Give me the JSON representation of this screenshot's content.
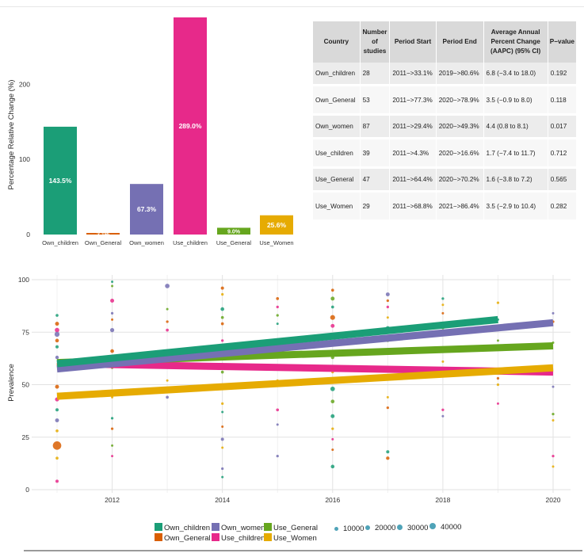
{
  "colors": {
    "Own_children": "#1b9e77",
    "Own_General": "#d95f02",
    "Own_women": "#7570b3",
    "Use_children": "#e7298a",
    "Use_General": "#66a61e",
    "Use_Women": "#e6ab02",
    "size_dot": "#4fa3b8"
  },
  "chart_data": [
    {
      "type": "bar",
      "ylabel": "Percentage Relative Change (%)",
      "categories": [
        "Own_children",
        "Own_General",
        "Own_women",
        "Use_children",
        "Use_General",
        "Use_Women"
      ],
      "values": [
        143.5,
        2.1,
        67.3,
        289.0,
        9.0,
        25.6
      ],
      "data_labels": [
        "143.5%",
        "2.1%",
        "67.3%",
        "289.0%",
        "9.0%",
        "25.6%"
      ],
      "yticks": [
        0,
        100,
        200
      ],
      "ylim": [
        0,
        290
      ],
      "grid": false
    },
    {
      "type": "scatter",
      "xlabel": "",
      "ylabel": "Prevalence",
      "xticks": [
        2012,
        2014,
        2016,
        2018,
        2020
      ],
      "yticks": [
        0,
        25,
        50,
        75,
        100
      ],
      "xlim": [
        2011,
        2020
      ],
      "ylim": [
        0,
        100
      ],
      "grid": true,
      "trend_lines": [
        {
          "series": "Use_children",
          "x": [
            2011,
            2020
          ],
          "y": [
            60.0,
            56.0
          ]
        },
        {
          "series": "Use_Women",
          "x": [
            2011,
            2020
          ],
          "y": [
            44.5,
            58.0
          ]
        },
        {
          "series": "Use_General",
          "x": [
            2011,
            2020
          ],
          "y": [
            60.5,
            68.5
          ]
        },
        {
          "series": "Own_General",
          "x": [
            2011,
            2014
          ],
          "y": [
            58.5,
            66.5
          ]
        },
        {
          "series": "Own_women",
          "x": [
            2011,
            2020
          ],
          "y": [
            57.5,
            79.5
          ]
        },
        {
          "series": "Own_children",
          "x": [
            2011,
            2019
          ],
          "y": [
            60.0,
            81.0
          ]
        }
      ],
      "points": [
        {
          "x": 2011,
          "y": 83,
          "s": "Own_children",
          "n": 5000
        },
        {
          "x": 2011,
          "y": 79,
          "s": "Own_General",
          "n": 9000
        },
        {
          "x": 2011,
          "y": 76,
          "s": "Use_children",
          "n": 12000
        },
        {
          "x": 2011,
          "y": 74,
          "s": "Own_women",
          "n": 15000
        },
        {
          "x": 2011,
          "y": 71,
          "s": "Own_General",
          "n": 8000
        },
        {
          "x": 2011,
          "y": 68,
          "s": "Own_children",
          "n": 6000
        },
        {
          "x": 2011,
          "y": 63,
          "s": "Own_women",
          "n": 7000
        },
        {
          "x": 2011,
          "y": 49,
          "s": "Own_General",
          "n": 9000
        },
        {
          "x": 2011,
          "y": 43,
          "s": "Use_children",
          "n": 10000
        },
        {
          "x": 2011,
          "y": 38,
          "s": "Own_children",
          "n": 6000
        },
        {
          "x": 2011,
          "y": 33,
          "s": "Own_women",
          "n": 9000
        },
        {
          "x": 2011,
          "y": 28,
          "s": "Use_Women",
          "n": 5000
        },
        {
          "x": 2011,
          "y": 21,
          "s": "Own_General",
          "n": 42000
        },
        {
          "x": 2011,
          "y": 15,
          "s": "Use_Women",
          "n": 5000
        },
        {
          "x": 2011,
          "y": 4,
          "s": "Use_children",
          "n": 6000
        },
        {
          "x": 2012,
          "y": 99,
          "s": "Own_children",
          "n": 2000
        },
        {
          "x": 2012,
          "y": 97,
          "s": "Use_General",
          "n": 2000
        },
        {
          "x": 2012,
          "y": 90,
          "s": "Use_children",
          "n": 9000
        },
        {
          "x": 2012,
          "y": 84,
          "s": "Own_women",
          "n": 4000
        },
        {
          "x": 2012,
          "y": 81,
          "s": "Own_General",
          "n": 3000
        },
        {
          "x": 2012,
          "y": 76,
          "s": "Own_women",
          "n": 10000
        },
        {
          "x": 2012,
          "y": 66,
          "s": "Own_General",
          "n": 8000
        },
        {
          "x": 2012,
          "y": 58,
          "s": "Use_General",
          "n": 3000
        },
        {
          "x": 2012,
          "y": 44,
          "s": "Use_Women",
          "n": 3000
        },
        {
          "x": 2012,
          "y": 34,
          "s": "Own_children",
          "n": 4000
        },
        {
          "x": 2012,
          "y": 29,
          "s": "Own_General",
          "n": 4000
        },
        {
          "x": 2012,
          "y": 21,
          "s": "Use_General",
          "n": 3000
        },
        {
          "x": 2012,
          "y": 16,
          "s": "Use_children",
          "n": 2000
        },
        {
          "x": 2013,
          "y": 97,
          "s": "Own_women",
          "n": 12000
        },
        {
          "x": 2013,
          "y": 86,
          "s": "Use_General",
          "n": 2000
        },
        {
          "x": 2013,
          "y": 80,
          "s": "Own_General",
          "n": 4000
        },
        {
          "x": 2013,
          "y": 76,
          "s": "Use_children",
          "n": 5000
        },
        {
          "x": 2013,
          "y": 52,
          "s": "Use_Women",
          "n": 3000
        },
        {
          "x": 2013,
          "y": 44,
          "s": "Own_women",
          "n": 5000
        },
        {
          "x": 2014,
          "y": 96,
          "s": "Own_General",
          "n": 6000
        },
        {
          "x": 2014,
          "y": 93,
          "s": "Use_Women",
          "n": 4000
        },
        {
          "x": 2014,
          "y": 86,
          "s": "Own_children",
          "n": 8000
        },
        {
          "x": 2014,
          "y": 82,
          "s": "Use_General",
          "n": 5000
        },
        {
          "x": 2014,
          "y": 79,
          "s": "Own_General",
          "n": 5000
        },
        {
          "x": 2014,
          "y": 71,
          "s": "Use_children",
          "n": 4000
        },
        {
          "x": 2014,
          "y": 64,
          "s": "Own_women",
          "n": 4000
        },
        {
          "x": 2014,
          "y": 56,
          "s": "Use_General",
          "n": 5000
        },
        {
          "x": 2014,
          "y": 41,
          "s": "Use_Women",
          "n": 4000
        },
        {
          "x": 2014,
          "y": 37,
          "s": "Own_children",
          "n": 3000
        },
        {
          "x": 2014,
          "y": 30,
          "s": "Own_General",
          "n": 3000
        },
        {
          "x": 2014,
          "y": 24,
          "s": "Own_women",
          "n": 6000
        },
        {
          "x": 2014,
          "y": 20,
          "s": "Use_Women",
          "n": 3000
        },
        {
          "x": 2014,
          "y": 10,
          "s": "Own_women",
          "n": 4000
        },
        {
          "x": 2014,
          "y": 6,
          "s": "Own_children",
          "n": 3000
        },
        {
          "x": 2015,
          "y": 91,
          "s": "Own_General",
          "n": 5000
        },
        {
          "x": 2015,
          "y": 87,
          "s": "Use_children",
          "n": 4000
        },
        {
          "x": 2015,
          "y": 83,
          "s": "Use_General",
          "n": 4000
        },
        {
          "x": 2015,
          "y": 79,
          "s": "Own_children",
          "n": 3000
        },
        {
          "x": 2015,
          "y": 66,
          "s": "Own_women",
          "n": 3000
        },
        {
          "x": 2015,
          "y": 52,
          "s": "Use_Women",
          "n": 3000
        },
        {
          "x": 2015,
          "y": 38,
          "s": "Use_children",
          "n": 5000
        },
        {
          "x": 2015,
          "y": 31,
          "s": "Own_women",
          "n": 3000
        },
        {
          "x": 2015,
          "y": 16,
          "s": "Own_women",
          "n": 4000
        },
        {
          "x": 2016,
          "y": 95,
          "s": "Own_General",
          "n": 5000
        },
        {
          "x": 2016,
          "y": 91,
          "s": "Use_General",
          "n": 9000
        },
        {
          "x": 2016,
          "y": 87,
          "s": "Own_children",
          "n": 5000
        },
        {
          "x": 2016,
          "y": 82,
          "s": "Own_General",
          "n": 14000
        },
        {
          "x": 2016,
          "y": 78,
          "s": "Use_children",
          "n": 9000
        },
        {
          "x": 2016,
          "y": 73,
          "s": "Own_women",
          "n": 6000
        },
        {
          "x": 2016,
          "y": 63,
          "s": "Use_General",
          "n": 7000
        },
        {
          "x": 2016,
          "y": 56,
          "s": "Use_Women",
          "n": 4000
        },
        {
          "x": 2016,
          "y": 48,
          "s": "Own_children",
          "n": 12000
        },
        {
          "x": 2016,
          "y": 42,
          "s": "Use_General",
          "n": 8000
        },
        {
          "x": 2016,
          "y": 35,
          "s": "Own_children",
          "n": 9000
        },
        {
          "x": 2016,
          "y": 29,
          "s": "Use_Women",
          "n": 4000
        },
        {
          "x": 2016,
          "y": 24,
          "s": "Use_children",
          "n": 3000
        },
        {
          "x": 2016,
          "y": 19,
          "s": "Own_General",
          "n": 3000
        },
        {
          "x": 2016,
          "y": 11,
          "s": "Own_children",
          "n": 8000
        },
        {
          "x": 2017,
          "y": 93,
          "s": "Own_women",
          "n": 9000
        },
        {
          "x": 2017,
          "y": 90,
          "s": "Own_General",
          "n": 4000
        },
        {
          "x": 2017,
          "y": 87,
          "s": "Use_children",
          "n": 4000
        },
        {
          "x": 2017,
          "y": 82,
          "s": "Use_Women",
          "n": 3000
        },
        {
          "x": 2017,
          "y": 77,
          "s": "Own_children",
          "n": 8000
        },
        {
          "x": 2017,
          "y": 71,
          "s": "Use_General",
          "n": 5000
        },
        {
          "x": 2017,
          "y": 66,
          "s": "Own_General",
          "n": 4000
        },
        {
          "x": 2017,
          "y": 44,
          "s": "Use_Women",
          "n": 3000
        },
        {
          "x": 2017,
          "y": 39,
          "s": "Own_General",
          "n": 4000
        },
        {
          "x": 2017,
          "y": 18,
          "s": "Own_children",
          "n": 6000
        },
        {
          "x": 2017,
          "y": 15,
          "s": "Own_General",
          "n": 7000
        },
        {
          "x": 2018,
          "y": 91,
          "s": "Own_children",
          "n": 4000
        },
        {
          "x": 2018,
          "y": 88,
          "s": "Use_Women",
          "n": 3000
        },
        {
          "x": 2018,
          "y": 84,
          "s": "Own_General",
          "n": 3000
        },
        {
          "x": 2018,
          "y": 77,
          "s": "Use_General",
          "n": 4000
        },
        {
          "x": 2018,
          "y": 61,
          "s": "Use_Women",
          "n": 3000
        },
        {
          "x": 2018,
          "y": 38,
          "s": "Use_children",
          "n": 4000
        },
        {
          "x": 2018,
          "y": 35,
          "s": "Own_women",
          "n": 3000
        },
        {
          "x": 2019,
          "y": 89,
          "s": "Use_Women",
          "n": 4000
        },
        {
          "x": 2019,
          "y": 81,
          "s": "Own_children",
          "n": 3000
        },
        {
          "x": 2019,
          "y": 76,
          "s": "Own_women",
          "n": 4000
        },
        {
          "x": 2019,
          "y": 71,
          "s": "Use_General",
          "n": 3000
        },
        {
          "x": 2019,
          "y": 53,
          "s": "Own_General",
          "n": 4000
        },
        {
          "x": 2019,
          "y": 50,
          "s": "Use_Women",
          "n": 4000
        },
        {
          "x": 2019,
          "y": 41,
          "s": "Use_children",
          "n": 3000
        },
        {
          "x": 2020,
          "y": 84,
          "s": "Own_women",
          "n": 3000
        },
        {
          "x": 2020,
          "y": 80,
          "s": "Own_General",
          "n": 4000
        },
        {
          "x": 2020,
          "y": 70,
          "s": "Use_General",
          "n": 3000
        },
        {
          "x": 2020,
          "y": 49,
          "s": "Own_women",
          "n": 3000
        },
        {
          "x": 2020,
          "y": 36,
          "s": "Use_General",
          "n": 4000
        },
        {
          "x": 2020,
          "y": 33,
          "s": "Use_Women",
          "n": 3000
        },
        {
          "x": 2020,
          "y": 16,
          "s": "Use_children",
          "n": 4000
        },
        {
          "x": 2020,
          "y": 11,
          "s": "Use_Women",
          "n": 3000
        }
      ]
    }
  ],
  "table": {
    "headers": [
      "Country",
      "Number of studies",
      "Period Start",
      "Period End",
      "Average Annual Percent Change (AAPC) (95% CI)",
      "P−value"
    ],
    "rows": [
      [
        "Own_children",
        "28",
        "2011−>33.1%",
        "2019−>80.6%",
        "6.8 (−3.4 to 18.0)",
        "0.192"
      ],
      [
        "Own_General",
        "53",
        "2011−>77.3%",
        "2020−>78.9%",
        "3.5 (−0.9 to  8.0)",
        "0.118"
      ],
      [
        "Own_women",
        "87",
        "2011−>29.4%",
        "2020−>49.3%",
        "4.4 (0.8 to  8.1)",
        "0.017"
      ],
      [
        "Use_children",
        "39",
        "2011−>4.3%",
        "2020−>16.6%",
        "1.7 (−7.4 to 11.7)",
        "0.712"
      ],
      [
        "Use_General",
        "47",
        "2011−>64.4%",
        "2020−>70.2%",
        "1.6 (−3.8 to  7.2)",
        "0.565"
      ],
      [
        "Use_Women",
        "29",
        "2011−>68.8%",
        "2021−>86.4%",
        "3.5 (−2.9 to 10.4)",
        "0.282"
      ]
    ]
  },
  "legend": {
    "series": [
      "Own_children",
      "Own_General",
      "Own_women",
      "Use_children",
      "Use_General",
      "Use_Women"
    ],
    "sizes": [
      "10000",
      "20000",
      "30000",
      "40000"
    ]
  }
}
